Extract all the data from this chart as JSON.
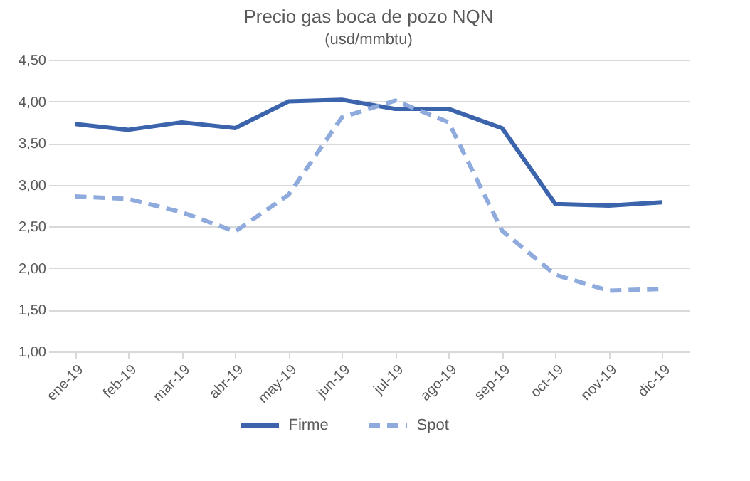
{
  "chart_data": {
    "type": "line",
    "title": "Precio gas boca de pozo NQN",
    "subtitle": "(usd/mmbtu)",
    "categories": [
      "ene-19",
      "feb-19",
      "mar-19",
      "abr-19",
      "may-19",
      "jun-19",
      "jul-19",
      "ago-19",
      "sep-19",
      "oct-19",
      "nov-19",
      "dic-19"
    ],
    "series": [
      {
        "name": "Firme",
        "color": "#3b64ad",
        "line_style": "solid",
        "values": [
          3.73,
          3.66,
          3.75,
          3.68,
          4.0,
          4.02,
          3.91,
          3.91,
          3.68,
          2.77,
          2.75,
          2.79
        ]
      },
      {
        "name": "Spot",
        "color": "#8faadc",
        "line_style": "dashed",
        "values": [
          2.86,
          2.83,
          2.67,
          2.44,
          2.88,
          3.81,
          4.01,
          3.75,
          2.45,
          1.92,
          1.73,
          1.75
        ]
      }
    ],
    "ylim": [
      1.0,
      4.5
    ],
    "yticks": [
      {
        "value": 1.0,
        "label": "1,00"
      },
      {
        "value": 1.5,
        "label": "1,50"
      },
      {
        "value": 2.0,
        "label": "2,00"
      },
      {
        "value": 2.5,
        "label": "2,50"
      },
      {
        "value": 3.0,
        "label": "3,00"
      },
      {
        "value": 3.5,
        "label": "3,50"
      },
      {
        "value": 4.0,
        "label": "4,00"
      },
      {
        "value": 4.5,
        "label": "4,50"
      }
    ],
    "grid": "y",
    "legend": "bottom",
    "marker": "none"
  }
}
